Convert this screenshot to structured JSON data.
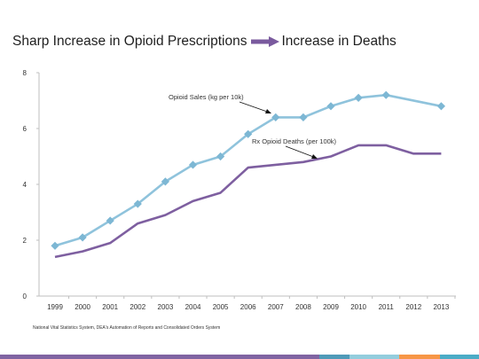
{
  "slide": {
    "title_left": "Sharp Increase in Opioid Prescriptions",
    "title_right": "Increase in Deaths",
    "source": "National Vital Statistics System, DEA's Automation of Reports and Consolidated Orders System"
  },
  "colors": {
    "sales": "#8fc3dc",
    "sales_marker": "#7db7d4",
    "deaths": "#7e5fa0",
    "arrow": "#7a5a9e",
    "axis": "#bfbfbf",
    "footer": [
      "#8064a2",
      "#4f9ab8",
      "#93cddd",
      "#f79646",
      "#4bacc6"
    ]
  },
  "chart_data": {
    "type": "line",
    "x": [
      "1999",
      "2000",
      "2001",
      "2002",
      "2003",
      "2004",
      "2005",
      "2006",
      "2007",
      "2008",
      "2009",
      "2010",
      "2011",
      "2012",
      "2013"
    ],
    "ylim": [
      0,
      8
    ],
    "yticks": [
      "0",
      "2",
      "4",
      "6",
      "8"
    ],
    "grid": false,
    "series": [
      {
        "name": "Opioid Sales (kg per 10k)",
        "values": [
          1.8,
          2.1,
          2.7,
          3.3,
          4.1,
          4.7,
          5.0,
          5.8,
          6.4,
          6.4,
          6.8,
          7.1,
          7.2,
          null,
          6.8
        ]
      },
      {
        "name": "Rx Opioid Deaths (per 100k)",
        "values": [
          1.4,
          1.6,
          1.9,
          2.6,
          2.9,
          3.4,
          3.7,
          4.6,
          4.7,
          4.8,
          5.0,
          5.4,
          5.4,
          5.1,
          5.1
        ]
      }
    ]
  }
}
